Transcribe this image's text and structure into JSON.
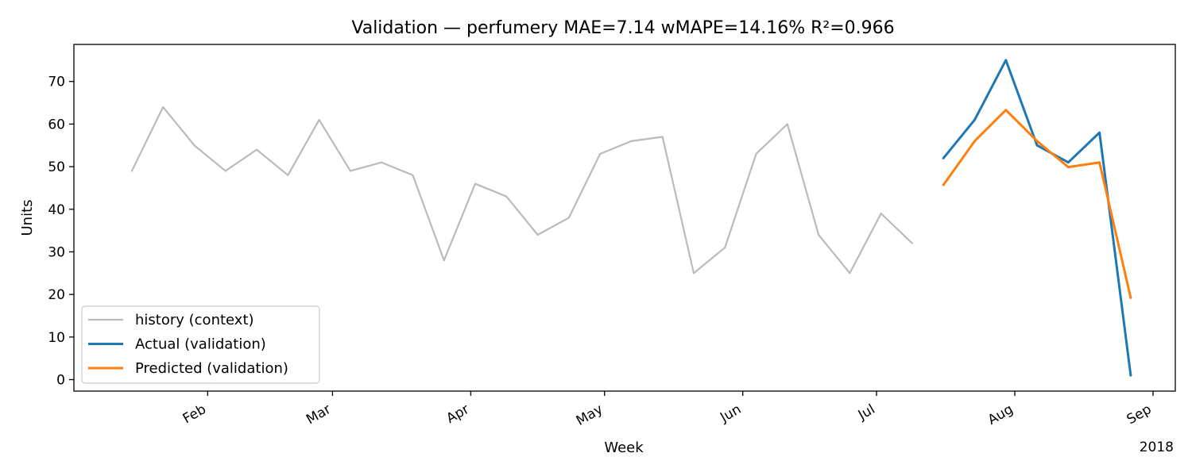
{
  "chart_data": {
    "type": "line",
    "title": "Validation — perfumery   MAE=7.14  wMAPE=14.16%  R²=0.966",
    "xlabel": "Week",
    "ylabel": "Units",
    "year_label": "2018",
    "xlim": [
      "2018-01-02",
      "2018-09-06"
    ],
    "ylim": [
      -2.7,
      78.7
    ],
    "y_ticks": [
      0,
      10,
      20,
      30,
      40,
      50,
      60,
      70
    ],
    "x_ticks": [
      {
        "date": "2018-02-01",
        "label": "Feb"
      },
      {
        "date": "2018-03-01",
        "label": "Mar"
      },
      {
        "date": "2018-04-01",
        "label": "Apr"
      },
      {
        "date": "2018-05-01",
        "label": "May"
      },
      {
        "date": "2018-06-01",
        "label": "Jun"
      },
      {
        "date": "2018-07-01",
        "label": "Jul"
      },
      {
        "date": "2018-08-01",
        "label": "Aug"
      },
      {
        "date": "2018-09-01",
        "label": "Sep"
      }
    ],
    "grid": false,
    "legend_position": "lower-left",
    "series": [
      {
        "name": "history (context)",
        "color": "#bbbbbb",
        "width": 2.2,
        "points": [
          [
            "2018-01-15",
            49
          ],
          [
            "2018-01-22",
            64
          ],
          [
            "2018-01-29",
            55
          ],
          [
            "2018-02-05",
            49
          ],
          [
            "2018-02-12",
            54
          ],
          [
            "2018-02-19",
            48
          ],
          [
            "2018-02-26",
            61
          ],
          [
            "2018-03-05",
            49
          ],
          [
            "2018-03-12",
            51
          ],
          [
            "2018-03-19",
            48
          ],
          [
            "2018-03-26",
            28
          ],
          [
            "2018-04-02",
            46
          ],
          [
            "2018-04-09",
            43
          ],
          [
            "2018-04-16",
            34
          ],
          [
            "2018-04-23",
            38
          ],
          [
            "2018-04-30",
            53
          ],
          [
            "2018-05-07",
            56
          ],
          [
            "2018-05-14",
            57
          ],
          [
            "2018-05-21",
            25
          ],
          [
            "2018-05-28",
            31
          ],
          [
            "2018-06-04",
            53
          ],
          [
            "2018-06-11",
            60
          ],
          [
            "2018-06-18",
            34
          ],
          [
            "2018-06-25",
            25
          ],
          [
            "2018-07-02",
            39
          ],
          [
            "2018-07-09",
            32
          ]
        ]
      },
      {
        "name": "Actual (validation)",
        "color": "#1f77b4",
        "width": 3,
        "points": [
          [
            "2018-07-16",
            52
          ],
          [
            "2018-07-23",
            61
          ],
          [
            "2018-07-30",
            75
          ],
          [
            "2018-08-06",
            55
          ],
          [
            "2018-08-13",
            51
          ],
          [
            "2018-08-20",
            58
          ],
          [
            "2018-08-27",
            1
          ]
        ]
      },
      {
        "name": "Predicted (validation)",
        "color": "#ff7f0e",
        "width": 3,
        "points": [
          [
            "2018-07-16",
            45.7
          ],
          [
            "2018-07-23",
            56
          ],
          [
            "2018-07-30",
            63.3
          ],
          [
            "2018-08-06",
            56
          ],
          [
            "2018-08-13",
            49.9
          ],
          [
            "2018-08-20",
            51
          ],
          [
            "2018-08-27",
            19.2
          ]
        ]
      }
    ]
  }
}
